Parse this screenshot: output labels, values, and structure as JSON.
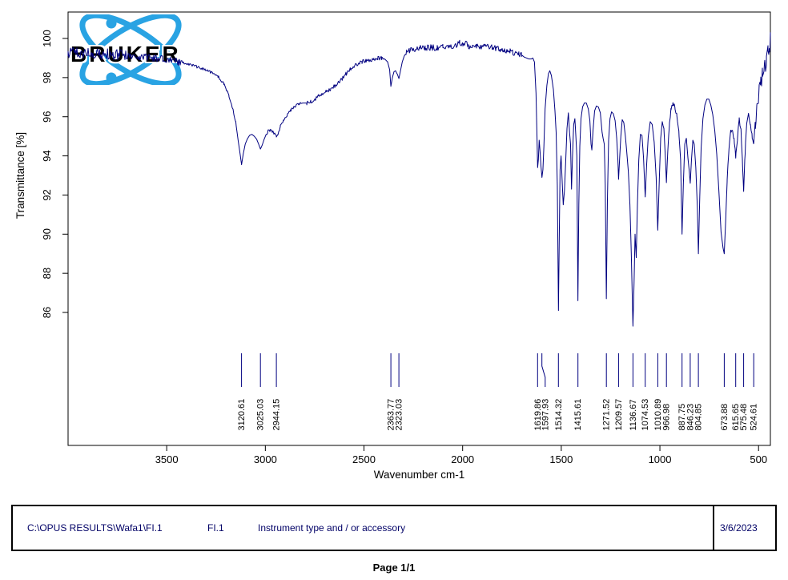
{
  "logo": {
    "brand": "BRUKER",
    "accent_color": "#29A3E3"
  },
  "footer": {
    "file_path": "C:\\OPUS RESULTS\\Wafa1\\FI.1",
    "sample_name": "FI.1",
    "description": "Instrument type and / or accessory",
    "date": "3/6/2023"
  },
  "page_label": "Page 1/1",
  "chart_data": {
    "type": "line",
    "xlabel": "Wavenumber cm-1",
    "ylabel": "Transmittance [%]",
    "x_ticks": [
      3500,
      3000,
      2500,
      2000,
      1500,
      1000,
      500
    ],
    "y_ticks": [
      100,
      98,
      96,
      94,
      92,
      90,
      88,
      86
    ],
    "x_max": 4000,
    "x_min": 440,
    "x_axis_reversed": true,
    "grid": false,
    "line_color": "#000080",
    "axis_color": "#000000",
    "peak_labels": [
      "3120.61",
      "3025.03",
      "2944.15",
      "2363.77",
      "2323.03",
      "1619.86",
      "1597.93",
      "1514.32",
      "1415.61",
      "1271.52",
      "1209.57",
      "1136.67",
      "1074.53",
      "1010.89",
      "966.98",
      "887.75",
      "846.23",
      "804.85",
      "673.88",
      "615.65",
      "575.48",
      "524.61"
    ],
    "noise_seed": 20230306,
    "noise_regions": [
      [
        4000,
        3700,
        0.28
      ],
      [
        3700,
        3420,
        0.18
      ],
      [
        3420,
        3150,
        0.07
      ],
      [
        2995,
        2820,
        0.08
      ],
      [
        2790,
        2400,
        0.1
      ],
      [
        2290,
        1700,
        0.15
      ],
      [
        985,
        900,
        0.1
      ],
      [
        660,
        520,
        0.12
      ],
      [
        520,
        440,
        0.45
      ]
    ],
    "curve_points": [
      [
        4000,
        99.2
      ],
      [
        3960,
        99.3
      ],
      [
        3920,
        99.2
      ],
      [
        3880,
        99.25
      ],
      [
        3840,
        99.2
      ],
      [
        3800,
        99.2
      ],
      [
        3760,
        99.15
      ],
      [
        3720,
        99.15
      ],
      [
        3680,
        99.1
      ],
      [
        3640,
        99.05
      ],
      [
        3600,
        99.05
      ],
      [
        3560,
        99.0
      ],
      [
        3520,
        98.95
      ],
      [
        3480,
        98.9
      ],
      [
        3440,
        98.8
      ],
      [
        3400,
        98.7
      ],
      [
        3360,
        98.6
      ],
      [
        3320,
        98.45
      ],
      [
        3280,
        98.3
      ],
      [
        3240,
        98.05
      ],
      [
        3210,
        97.7
      ],
      [
        3185,
        97.1
      ],
      [
        3165,
        96.4
      ],
      [
        3150,
        95.7
      ],
      [
        3138,
        94.8
      ],
      [
        3128,
        94.1
      ],
      [
        3120.6,
        93.55
      ],
      [
        3112,
        94.1
      ],
      [
        3102,
        94.6
      ],
      [
        3092,
        94.85
      ],
      [
        3080,
        95.05
      ],
      [
        3068,
        95.1
      ],
      [
        3056,
        95.0
      ],
      [
        3044,
        94.85
      ],
      [
        3034,
        94.6
      ],
      [
        3025,
        94.35
      ],
      [
        3016,
        94.55
      ],
      [
        3006,
        94.85
      ],
      [
        2996,
        95.1
      ],
      [
        2986,
        95.25
      ],
      [
        2974,
        95.3
      ],
      [
        2962,
        95.2
      ],
      [
        2952,
        95.1
      ],
      [
        2944.2,
        94.95
      ],
      [
        2936,
        95.15
      ],
      [
        2924,
        95.5
      ],
      [
        2908,
        95.85
      ],
      [
        2890,
        96.1
      ],
      [
        2870,
        96.35
      ],
      [
        2850,
        96.55
      ],
      [
        2830,
        96.65
      ],
      [
        2810,
        96.7
      ],
      [
        2790,
        96.7
      ],
      [
        2770,
        96.75
      ],
      [
        2750,
        96.9
      ],
      [
        2730,
        97.05
      ],
      [
        2710,
        97.2
      ],
      [
        2690,
        97.3
      ],
      [
        2670,
        97.4
      ],
      [
        2650,
        97.55
      ],
      [
        2630,
        97.75
      ],
      [
        2610,
        97.95
      ],
      [
        2590,
        98.2
      ],
      [
        2570,
        98.4
      ],
      [
        2550,
        98.6
      ],
      [
        2530,
        98.7
      ],
      [
        2510,
        98.8
      ],
      [
        2490,
        98.85
      ],
      [
        2470,
        98.9
      ],
      [
        2450,
        98.95
      ],
      [
        2430,
        99.0
      ],
      [
        2410,
        99.0
      ],
      [
        2395,
        98.95
      ],
      [
        2380,
        98.8
      ],
      [
        2370,
        98.4
      ],
      [
        2363.8,
        97.55
      ],
      [
        2356,
        98.0
      ],
      [
        2348,
        98.3
      ],
      [
        2340,
        98.35
      ],
      [
        2330,
        98.15
      ],
      [
        2323,
        97.95
      ],
      [
        2316,
        98.3
      ],
      [
        2306,
        98.8
      ],
      [
        2296,
        99.1
      ],
      [
        2284,
        99.3
      ],
      [
        2270,
        99.4
      ],
      [
        2250,
        99.45
      ],
      [
        2220,
        99.5
      ],
      [
        2190,
        99.5
      ],
      [
        2160,
        99.55
      ],
      [
        2130,
        99.5
      ],
      [
        2100,
        99.55
      ],
      [
        2070,
        99.55
      ],
      [
        2040,
        99.6
      ],
      [
        2015,
        99.8
      ],
      [
        2000,
        99.65
      ],
      [
        1985,
        99.75
      ],
      [
        1970,
        99.6
      ],
      [
        1950,
        99.6
      ],
      [
        1930,
        99.65
      ],
      [
        1910,
        99.6
      ],
      [
        1890,
        99.6
      ],
      [
        1870,
        99.55
      ],
      [
        1850,
        99.55
      ],
      [
        1830,
        99.5
      ],
      [
        1810,
        99.45
      ],
      [
        1790,
        99.4
      ],
      [
        1775,
        99.4
      ],
      [
        1760,
        99.35
      ],
      [
        1745,
        99.3
      ],
      [
        1730,
        99.25
      ],
      [
        1715,
        99.2
      ],
      [
        1700,
        99.15
      ],
      [
        1688,
        99.05
      ],
      [
        1676,
        99.0
      ],
      [
        1664,
        98.95
      ],
      [
        1652,
        98.95
      ],
      [
        1644,
        99.0
      ],
      [
        1636,
        98.8
      ],
      [
        1628,
        97.2
      ],
      [
        1622,
        94.5
      ],
      [
        1619.9,
        93.4
      ],
      [
        1616,
        93.8
      ],
      [
        1612,
        94.8
      ],
      [
        1608,
        94.3
      ],
      [
        1603,
        93.5
      ],
      [
        1597.9,
        92.9
      ],
      [
        1593,
        93.3
      ],
      [
        1588,
        94.5
      ],
      [
        1582,
        96.4
      ],
      [
        1573,
        97.6
      ],
      [
        1565,
        98.2
      ],
      [
        1558,
        98.35
      ],
      [
        1550,
        98.1
      ],
      [
        1540,
        97.4
      ],
      [
        1532,
        96.3
      ],
      [
        1526,
        95.2
      ],
      [
        1520,
        92.5
      ],
      [
        1514.3,
        86.1
      ],
      [
        1510,
        90.0
      ],
      [
        1506,
        93.3
      ],
      [
        1501,
        94.0
      ],
      [
        1495,
        92.6
      ],
      [
        1490,
        91.5
      ],
      [
        1484,
        92.2
      ],
      [
        1478,
        93.6
      ],
      [
        1471,
        95.4
      ],
      [
        1464,
        96.2
      ],
      [
        1458,
        95.2
      ],
      [
        1453,
        94.6
      ],
      [
        1448,
        92.3
      ],
      [
        1443,
        94.0
      ],
      [
        1437,
        95.6
      ],
      [
        1431,
        95.9
      ],
      [
        1426,
        95.0
      ],
      [
        1421,
        94.0
      ],
      [
        1415.6,
        86.6
      ],
      [
        1411,
        91.5
      ],
      [
        1406,
        94.5
      ],
      [
        1400,
        95.9
      ],
      [
        1392,
        96.5
      ],
      [
        1383,
        96.7
      ],
      [
        1373,
        96.7
      ],
      [
        1363,
        96.4
      ],
      [
        1355,
        95.8
      ],
      [
        1349,
        94.6
      ],
      [
        1345,
        94.3
      ],
      [
        1339,
        95.3
      ],
      [
        1331,
        96.3
      ],
      [
        1322,
        96.55
      ],
      [
        1312,
        96.5
      ],
      [
        1302,
        96.2
      ],
      [
        1293,
        95.2
      ],
      [
        1288,
        94.9
      ],
      [
        1282,
        94.6
      ],
      [
        1277,
        92.5
      ],
      [
        1271.5,
        86.7
      ],
      [
        1266,
        91.8
      ],
      [
        1260,
        94.8
      ],
      [
        1253,
        95.9
      ],
      [
        1245,
        96.25
      ],
      [
        1236,
        96.15
      ],
      [
        1227,
        95.8
      ],
      [
        1219,
        94.9
      ],
      [
        1213,
        93.8
      ],
      [
        1209.6,
        92.8
      ],
      [
        1204,
        93.9
      ],
      [
        1198,
        95.0
      ],
      [
        1191,
        95.85
      ],
      [
        1183,
        95.7
      ],
      [
        1175,
        95.0
      ],
      [
        1168,
        94.2
      ],
      [
        1160,
        93.2
      ],
      [
        1152,
        91.5
      ],
      [
        1145,
        89.0
      ],
      [
        1136.7,
        85.3
      ],
      [
        1131,
        87.5
      ],
      [
        1126,
        90.0
      ],
      [
        1120,
        88.8
      ],
      [
        1114,
        91.5
      ],
      [
        1107,
        93.8
      ],
      [
        1099,
        95.1
      ],
      [
        1091,
        95.05
      ],
      [
        1083,
        93.9
      ],
      [
        1074.5,
        91.9
      ],
      [
        1067,
        93.6
      ],
      [
        1059,
        95.0
      ],
      [
        1049,
        95.75
      ],
      [
        1039,
        95.6
      ],
      [
        1029,
        94.7
      ],
      [
        1019,
        92.9
      ],
      [
        1010.9,
        90.2
      ],
      [
        1003,
        92.8
      ],
      [
        996,
        94.9
      ],
      [
        988,
        95.75
      ],
      [
        980,
        95.4
      ],
      [
        972,
        93.9
      ],
      [
        967,
        92.7
      ],
      [
        960,
        94.3
      ],
      [
        952,
        95.6
      ],
      [
        944,
        96.4
      ],
      [
        934,
        96.7
      ],
      [
        924,
        96.5
      ],
      [
        914,
        96.05
      ],
      [
        904,
        95.2
      ],
      [
        895,
        93.8
      ],
      [
        887.8,
        90.0
      ],
      [
        881,
        92.6
      ],
      [
        874,
        94.6
      ],
      [
        866,
        94.9
      ],
      [
        858,
        93.9
      ],
      [
        851,
        93.2
      ],
      [
        846.2,
        92.6
      ],
      [
        840,
        93.8
      ],
      [
        833,
        94.8
      ],
      [
        826,
        94.6
      ],
      [
        818,
        93.4
      ],
      [
        810,
        91.3
      ],
      [
        804.9,
        89.0
      ],
      [
        798,
        91.9
      ],
      [
        791,
        94.4
      ],
      [
        782,
        95.9
      ],
      [
        772,
        96.6
      ],
      [
        762,
        96.9
      ],
      [
        752,
        96.9
      ],
      [
        742,
        96.6
      ],
      [
        732,
        96.1
      ],
      [
        722,
        95.3
      ],
      [
        712,
        94.1
      ],
      [
        701,
        92.2
      ],
      [
        690,
        90.1
      ],
      [
        680,
        89.3
      ],
      [
        673.9,
        89.0
      ],
      [
        667,
        90.6
      ],
      [
        659,
        92.8
      ],
      [
        650,
        94.4
      ],
      [
        641,
        95.3
      ],
      [
        632,
        95.3
      ],
      [
        624,
        94.8
      ],
      [
        615.7,
        94.0
      ],
      [
        607,
        94.9
      ],
      [
        598,
        95.9
      ],
      [
        589,
        95.3
      ],
      [
        581,
        93.6
      ],
      [
        575.5,
        92.3
      ],
      [
        568,
        94.2
      ],
      [
        560,
        95.7
      ],
      [
        551,
        96.1
      ],
      [
        541,
        95.6
      ],
      [
        532,
        95.0
      ],
      [
        524.6,
        94.6
      ],
      [
        516,
        95.7
      ],
      [
        508,
        96.6
      ],
      [
        499,
        97.1
      ],
      [
        490,
        97.6
      ],
      [
        480,
        98.1
      ],
      [
        470,
        98.55
      ],
      [
        460,
        98.9
      ],
      [
        452,
        99.2
      ],
      [
        446,
        99.5
      ],
      [
        442,
        99.9
      ],
      [
        440,
        100.2
      ]
    ]
  }
}
